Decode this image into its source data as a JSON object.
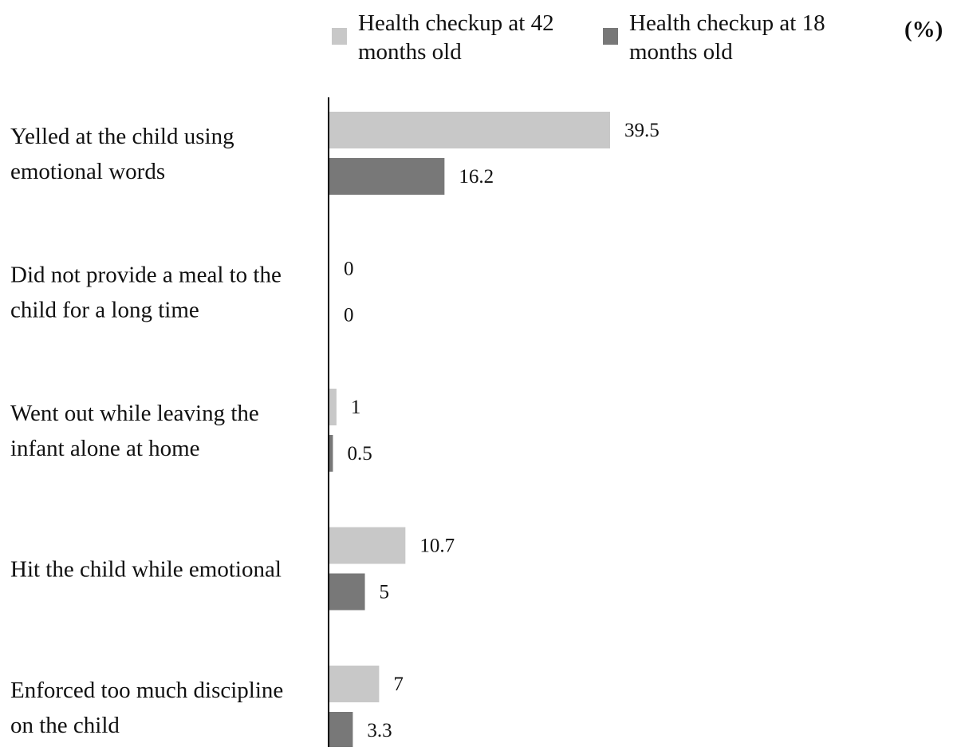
{
  "chart_data": {
    "type": "bar",
    "orientation": "horizontal",
    "unit_label": "(%)",
    "categories": [
      [
        "Yelled at the child using",
        "emotional words"
      ],
      [
        "Did not provide a meal to the",
        "child for a long time"
      ],
      [
        "Went out while leaving the",
        "infant alone at home"
      ],
      [
        "Hit the child while emotional"
      ],
      [
        "Enforced too much discipline",
        "on the child"
      ]
    ],
    "series": [
      {
        "name": [
          "Health checkup at 42",
          "months old"
        ],
        "color": "#c8c8c8",
        "values": [
          39.5,
          0,
          1,
          10.7,
          7
        ],
        "labels": [
          "39.5",
          "0",
          "1",
          "10.7",
          "7"
        ]
      },
      {
        "name": [
          "Health checkup at 18",
          "months old"
        ],
        "color": "#787878",
        "values": [
          16.2,
          0,
          0.5,
          5,
          3.3
        ],
        "labels": [
          "16.2",
          "0",
          "0.5",
          "5",
          "3.3"
        ]
      }
    ],
    "xlim": [
      0,
      45
    ],
    "grid": false,
    "legend_position": "top"
  }
}
